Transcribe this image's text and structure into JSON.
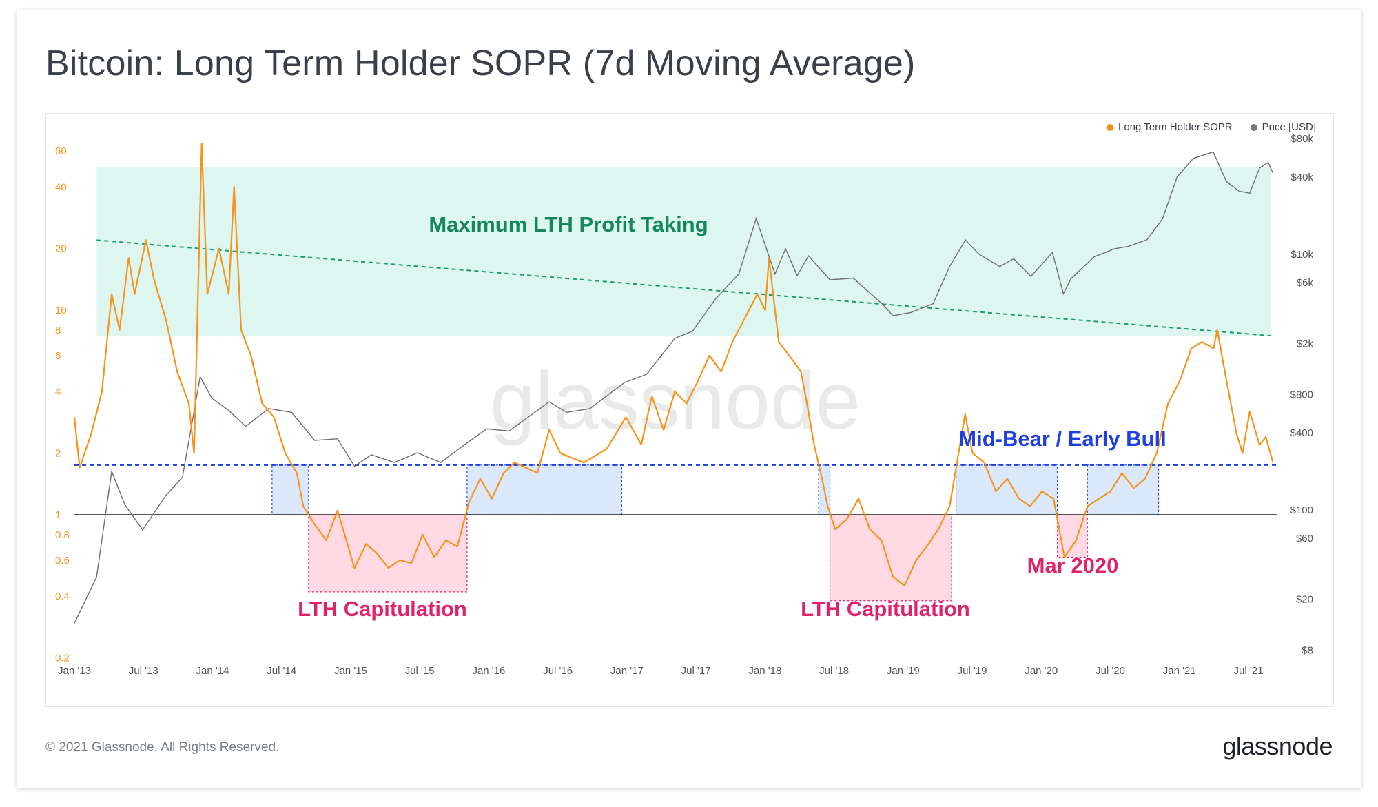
{
  "title": "Bitcoin: Long Term Holder SOPR (7d Moving Average)",
  "footer": {
    "copyright": "© 2021 Glassnode. All Rights Reserved.",
    "logo": "glassnode"
  },
  "watermark": "glassnode",
  "colors": {
    "sopr": "#f7931a",
    "price": "#6e6e6e",
    "profit_zone": "#d9f5ee",
    "profit_line": "#1a9b6c",
    "bear_zone": "#dbe7fb",
    "bear_line": "#1f3fe0",
    "capitulation_zone": "#ffd9e4",
    "capitulation_line": "#e0226a",
    "baseline": "#222222"
  },
  "chart_data": {
    "type": "line",
    "title": "Bitcoin: Long Term Holder SOPR (7d Moving Average)",
    "legend": {
      "placement": "top-right",
      "entries": [
        "Long Term Holder SOPR",
        "Price [USD]"
      ]
    },
    "x_ticks": [
      "Jan '13",
      "Jul '13",
      "Jan '14",
      "Jul '14",
      "Jan '15",
      "Jul '15",
      "Jan '16",
      "Jul '16",
      "Jan '17",
      "Jul '17",
      "Jan '18",
      "Jul '18",
      "Jan '19",
      "Jul '19",
      "Jan '20",
      "Jul '20",
      "Jan '21",
      "Jul '21"
    ],
    "left_axis": {
      "scale": "log",
      "ylim": [
        0.2,
        70
      ],
      "ticks": [
        {
          "v": 60,
          "label": "60"
        },
        {
          "v": 40,
          "label": "40"
        },
        {
          "v": 20,
          "label": "20"
        },
        {
          "v": 10,
          "label": "10"
        },
        {
          "v": 8,
          "label": "8"
        },
        {
          "v": 6,
          "label": "6"
        },
        {
          "v": 4,
          "label": "4"
        },
        {
          "v": 2,
          "label": "2"
        },
        {
          "v": 1,
          "label": "1"
        },
        {
          "v": 0.8,
          "label": "0.8"
        },
        {
          "v": 0.6,
          "label": "0.6"
        },
        {
          "v": 0.4,
          "label": "0.4"
        },
        {
          "v": 0.2,
          "label": "0.2"
        }
      ]
    },
    "right_axis": {
      "scale": "log",
      "ylim": [
        8,
        80000
      ],
      "ticks": [
        {
          "v": 80000,
          "label": "$80k"
        },
        {
          "v": 40000,
          "label": "$40k"
        },
        {
          "v": 10000,
          "label": "$10k"
        },
        {
          "v": 6000,
          "label": "$6k"
        },
        {
          "v": 2000,
          "label": "$2k"
        },
        {
          "v": 800,
          "label": "$800"
        },
        {
          "v": 400,
          "label": "$400"
        },
        {
          "v": 100,
          "label": "$100"
        },
        {
          "v": 60,
          "label": "$60"
        },
        {
          "v": 20,
          "label": "$20"
        },
        {
          "v": 8,
          "label": "$8"
        }
      ]
    },
    "series": [
      {
        "name": "Long Term Holder SOPR",
        "axis": "left",
        "points": [
          [
            "2013-01-01",
            3
          ],
          [
            "2013-01-15",
            1.7
          ],
          [
            "2013-02-15",
            2.5
          ],
          [
            "2013-03-15",
            4
          ],
          [
            "2013-04-10",
            12
          ],
          [
            "2013-05-01",
            8
          ],
          [
            "2013-05-25",
            18
          ],
          [
            "2013-06-10",
            12
          ],
          [
            "2013-07-10",
            22
          ],
          [
            "2013-08-01",
            14
          ],
          [
            "2013-09-01",
            9
          ],
          [
            "2013-10-01",
            5
          ],
          [
            "2013-11-01",
            3.5
          ],
          [
            "2013-11-15",
            2
          ],
          [
            "2013-12-05",
            65
          ],
          [
            "2013-12-20",
            12
          ],
          [
            "2014-01-20",
            20
          ],
          [
            "2014-02-15",
            12
          ],
          [
            "2014-03-01",
            40
          ],
          [
            "2014-03-20",
            8
          ],
          [
            "2014-04-15",
            6
          ],
          [
            "2014-05-15",
            3.5
          ],
          [
            "2014-06-15",
            3
          ],
          [
            "2014-07-15",
            2
          ],
          [
            "2014-08-15",
            1.6
          ],
          [
            "2014-09-01",
            1.1
          ],
          [
            "2014-10-01",
            0.9
          ],
          [
            "2014-11-01",
            0.75
          ],
          [
            "2014-12-01",
            1.05
          ],
          [
            "2015-01-15",
            0.55
          ],
          [
            "2015-02-15",
            0.72
          ],
          [
            "2015-03-15",
            0.65
          ],
          [
            "2015-04-15",
            0.55
          ],
          [
            "2015-05-15",
            0.6
          ],
          [
            "2015-06-15",
            0.58
          ],
          [
            "2015-07-15",
            0.8
          ],
          [
            "2015-08-15",
            0.62
          ],
          [
            "2015-09-15",
            0.75
          ],
          [
            "2015-10-15",
            0.7
          ],
          [
            "2015-11-15",
            1.15
          ],
          [
            "2015-12-15",
            1.5
          ],
          [
            "2016-01-15",
            1.2
          ],
          [
            "2016-02-15",
            1.6
          ],
          [
            "2016-03-15",
            1.8
          ],
          [
            "2016-05-15",
            1.6
          ],
          [
            "2016-06-15",
            2.6
          ],
          [
            "2016-07-15",
            2
          ],
          [
            "2016-09-15",
            1.8
          ],
          [
            "2016-11-15",
            2.1
          ],
          [
            "2017-01-05",
            3
          ],
          [
            "2017-02-15",
            2.2
          ],
          [
            "2017-03-15",
            3.8
          ],
          [
            "2017-04-15",
            2.6
          ],
          [
            "2017-05-15",
            4
          ],
          [
            "2017-06-15",
            3.5
          ],
          [
            "2017-07-15",
            4.5
          ],
          [
            "2017-08-15",
            6
          ],
          [
            "2017-09-15",
            5
          ],
          [
            "2017-10-15",
            7
          ],
          [
            "2017-11-15",
            9
          ],
          [
            "2017-12-20",
            12
          ],
          [
            "2018-01-10",
            10
          ],
          [
            "2018-01-20",
            18
          ],
          [
            "2018-02-15",
            7
          ],
          [
            "2018-03-15",
            6
          ],
          [
            "2018-04-15",
            5
          ],
          [
            "2018-05-01",
            3.5
          ],
          [
            "2018-05-20",
            2.2
          ],
          [
            "2018-06-10",
            1.5
          ],
          [
            "2018-06-25",
            1.1
          ],
          [
            "2018-07-15",
            0.85
          ],
          [
            "2018-08-15",
            0.95
          ],
          [
            "2018-09-15",
            1.2
          ],
          [
            "2018-10-15",
            0.85
          ],
          [
            "2018-11-15",
            0.75
          ],
          [
            "2018-12-15",
            0.5
          ],
          [
            "2019-01-15",
            0.45
          ],
          [
            "2019-02-15",
            0.6
          ],
          [
            "2019-03-15",
            0.7
          ],
          [
            "2019-04-15",
            0.85
          ],
          [
            "2019-05-15",
            1.1
          ],
          [
            "2019-06-25",
            3.1
          ],
          [
            "2019-07-15",
            2
          ],
          [
            "2019-08-15",
            1.8
          ],
          [
            "2019-09-15",
            1.3
          ],
          [
            "2019-10-15",
            1.5
          ],
          [
            "2019-11-15",
            1.2
          ],
          [
            "2019-12-15",
            1.1
          ],
          [
            "2020-01-15",
            1.3
          ],
          [
            "2020-02-15",
            1.2
          ],
          [
            "2020-03-15",
            0.62
          ],
          [
            "2020-04-15",
            0.75
          ],
          [
            "2020-05-15",
            1.1
          ],
          [
            "2020-06-15",
            1.2
          ],
          [
            "2020-07-15",
            1.3
          ],
          [
            "2020-08-15",
            1.6
          ],
          [
            "2020-09-15",
            1.35
          ],
          [
            "2020-10-15",
            1.5
          ],
          [
            "2020-11-15",
            2
          ],
          [
            "2020-12-15",
            3.5
          ],
          [
            "2021-01-15",
            4.5
          ],
          [
            "2021-02-15",
            6.5
          ],
          [
            "2021-03-15",
            7
          ],
          [
            "2021-04-15",
            6.5
          ],
          [
            "2021-04-25",
            8
          ],
          [
            "2021-05-15",
            5
          ],
          [
            "2021-06-15",
            2.5
          ],
          [
            "2021-07-01",
            2
          ],
          [
            "2021-07-20",
            3.2
          ],
          [
            "2021-08-15",
            2.2
          ],
          [
            "2021-09-01",
            2.4
          ],
          [
            "2021-09-20",
            1.8
          ]
        ]
      },
      {
        "name": "Price [USD]",
        "axis": "right",
        "points": [
          [
            "2013-01-01",
            13
          ],
          [
            "2013-03-01",
            30
          ],
          [
            "2013-04-10",
            200
          ],
          [
            "2013-05-15",
            110
          ],
          [
            "2013-07-01",
            70
          ],
          [
            "2013-09-01",
            130
          ],
          [
            "2013-10-15",
            180
          ],
          [
            "2013-12-01",
            1100
          ],
          [
            "2014-01-01",
            750
          ],
          [
            "2014-02-15",
            600
          ],
          [
            "2014-04-01",
            450
          ],
          [
            "2014-06-01",
            620
          ],
          [
            "2014-08-01",
            580
          ],
          [
            "2014-10-01",
            350
          ],
          [
            "2014-12-01",
            360
          ],
          [
            "2015-01-15",
            220
          ],
          [
            "2015-03-01",
            270
          ],
          [
            "2015-05-01",
            235
          ],
          [
            "2015-07-01",
            280
          ],
          [
            "2015-09-01",
            235
          ],
          [
            "2015-11-01",
            320
          ],
          [
            "2016-01-01",
            430
          ],
          [
            "2016-03-01",
            415
          ],
          [
            "2016-06-15",
            700
          ],
          [
            "2016-08-01",
            580
          ],
          [
            "2016-10-01",
            620
          ],
          [
            "2017-01-01",
            990
          ],
          [
            "2017-03-01",
            1150
          ],
          [
            "2017-05-15",
            2200
          ],
          [
            "2017-07-01",
            2500
          ],
          [
            "2017-09-01",
            4500
          ],
          [
            "2017-11-01",
            7000
          ],
          [
            "2017-12-17",
            19000
          ],
          [
            "2018-02-05",
            7000
          ],
          [
            "2018-03-05",
            11000
          ],
          [
            "2018-04-05",
            6800
          ],
          [
            "2018-05-05",
            9700
          ],
          [
            "2018-07-01",
            6300
          ],
          [
            "2018-09-01",
            6500
          ],
          [
            "2018-11-20",
            4000
          ],
          [
            "2018-12-15",
            3300
          ],
          [
            "2019-02-01",
            3500
          ],
          [
            "2019-04-01",
            4100
          ],
          [
            "2019-05-15",
            8000
          ],
          [
            "2019-06-26",
            12900
          ],
          [
            "2019-08-01",
            10000
          ],
          [
            "2019-09-25",
            8000
          ],
          [
            "2019-11-01",
            9200
          ],
          [
            "2019-12-17",
            6700
          ],
          [
            "2020-02-12",
            10300
          ],
          [
            "2020-03-12",
            4900
          ],
          [
            "2020-04-01",
            6400
          ],
          [
            "2020-06-01",
            9500
          ],
          [
            "2020-07-25",
            11000
          ],
          [
            "2020-09-01",
            11500
          ],
          [
            "2020-10-21",
            13000
          ],
          [
            "2020-12-01",
            19000
          ],
          [
            "2021-01-08",
            40000
          ],
          [
            "2021-02-20",
            56000
          ],
          [
            "2021-04-14",
            63000
          ],
          [
            "2021-05-19",
            37000
          ],
          [
            "2021-06-22",
            31000
          ],
          [
            "2021-07-20",
            30000
          ],
          [
            "2021-08-15",
            47000
          ],
          [
            "2021-09-07",
            52000
          ],
          [
            "2021-09-20",
            43000
          ]
        ]
      }
    ],
    "annotations": [
      {
        "label": "Maximum LTH Profit Taking",
        "zone": "profit"
      },
      {
        "label": "LTH Capitulation",
        "zone": "capitulation_1"
      },
      {
        "label": "LTH Capitulation",
        "zone": "capitulation_2"
      },
      {
        "label": "Mid-Bear / Early Bull",
        "zone": "bear"
      },
      {
        "label": "Mar 2020",
        "zone": "capitulation_3"
      }
    ],
    "zones": {
      "profit": {
        "x": [
          "2013-03-01",
          "2021-09-15"
        ],
        "y_top": 50,
        "line": [
          [
            "2013-03-01",
            22
          ],
          [
            "2021-09-15",
            7.5
          ]
        ]
      },
      "bear_line_y": 1.75,
      "bear": [
        [
          "2014-06-10",
          "2014-09-15"
        ],
        [
          "2015-11-10",
          "2016-12-25"
        ],
        [
          "2018-06-01",
          "2018-07-01"
        ],
        [
          "2019-06-01",
          "2020-02-25"
        ],
        [
          "2020-05-15",
          "2020-11-20"
        ]
      ],
      "capitulation": [
        {
          "x": [
            "2014-09-15",
            "2015-11-10"
          ],
          "y_low": 0.42
        },
        {
          "x": [
            "2018-07-01",
            "2019-05-20"
          ],
          "y_low": 0.38
        },
        {
          "x": [
            "2020-02-25",
            "2020-05-15"
          ],
          "y_low": 0.62
        }
      ]
    }
  }
}
